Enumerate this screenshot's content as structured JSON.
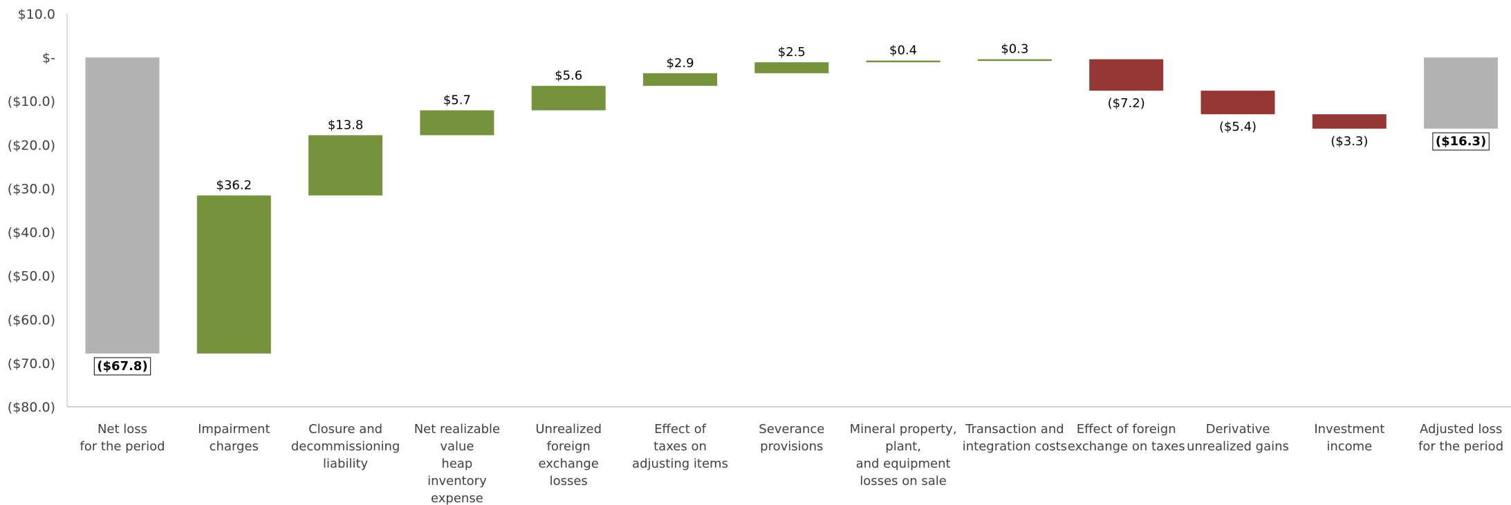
{
  "chart_data": {
    "type": "waterfall",
    "ylim": [
      -80,
      10
    ],
    "y_ticks": [
      10,
      0,
      -10,
      -20,
      -30,
      -40,
      -50,
      -60,
      -70,
      -80
    ],
    "y_tick_labels": [
      "$10.0",
      "$-",
      "($10.0)",
      "($20.0)",
      "($30.0)",
      "($40.0)",
      "($50.0)",
      "($60.0)",
      "($70.0)",
      "($80.0)"
    ],
    "grid": false,
    "colors": {
      "total": "#b3b3b3",
      "increase": "#76923c",
      "decrease": "#953735"
    },
    "categories": [
      [
        "Net loss",
        "for the period"
      ],
      [
        "Impairment",
        "charges"
      ],
      [
        "Closure and",
        "decommissioning",
        "liability"
      ],
      [
        "Net realizable",
        "value",
        "heap",
        "inventory",
        "expense"
      ],
      [
        "Unrealized",
        "foreign",
        "exchange",
        "losses"
      ],
      [
        "Effect of",
        "taxes on",
        "adjusting items"
      ],
      [
        "Severance",
        "provisions"
      ],
      [
        "Mineral property,",
        "plant,",
        "and equipment",
        "losses on sale"
      ],
      [
        "Transaction and",
        "integration costs"
      ],
      [
        "Effect of foreign",
        "exchange on taxes"
      ],
      [
        "Derivative",
        "unrealized gains"
      ],
      [
        "Investment",
        "income"
      ],
      [
        "Adjusted loss",
        "for the period"
      ]
    ],
    "kinds": [
      "total",
      "increase",
      "increase",
      "increase",
      "increase",
      "increase",
      "increase",
      "increase",
      "increase",
      "decrease",
      "decrease",
      "decrease",
      "total"
    ],
    "values": [
      -67.8,
      36.2,
      13.8,
      5.7,
      5.6,
      2.9,
      2.5,
      0.4,
      0.3,
      -7.2,
      -5.4,
      -3.3,
      -16.3
    ],
    "labels": [
      "($67.8)",
      "$36.2",
      "$13.8",
      "$5.7",
      "$5.6",
      "$2.9",
      "$2.5",
      "$0.4",
      "$0.3",
      "($7.2)",
      "($5.4)",
      "($3.3)",
      "($16.3)"
    ]
  }
}
